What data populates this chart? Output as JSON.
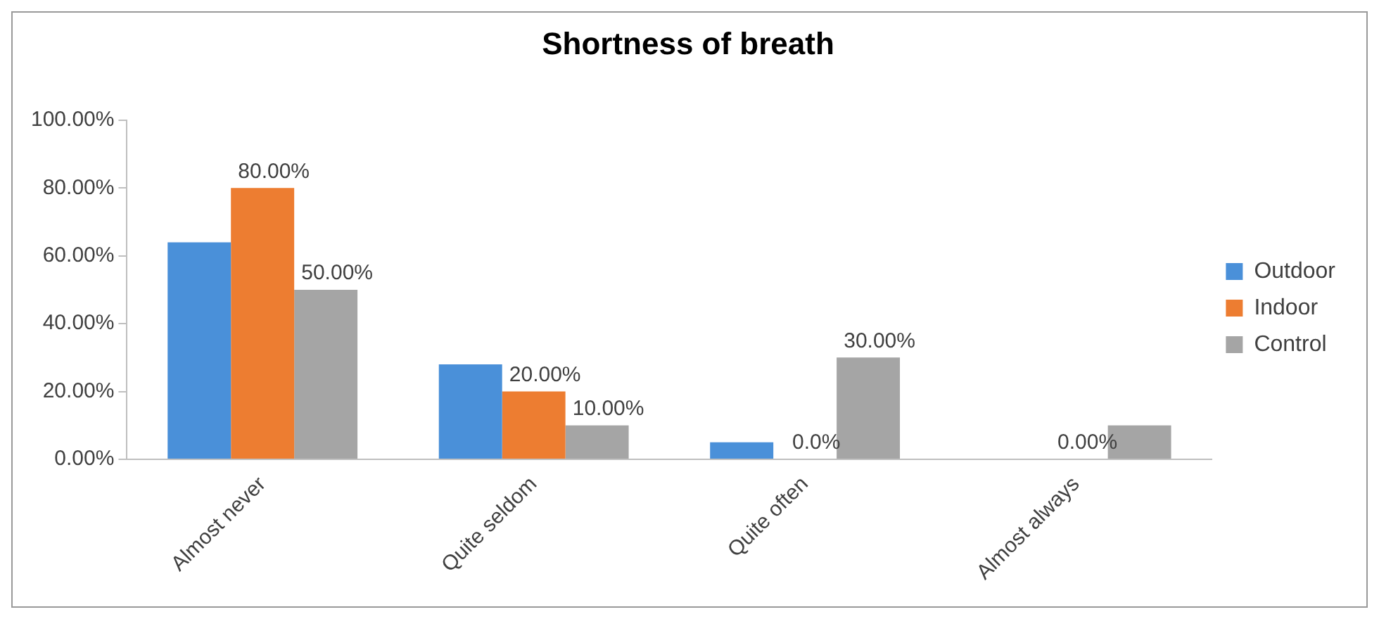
{
  "chart_data": {
    "type": "bar",
    "title": "Shortness of breath",
    "categories": [
      "Almost never",
      "Quite seldom",
      "Quite often",
      "Almost always"
    ],
    "series": [
      {
        "name": "Outdoor",
        "color": "#4a90d9",
        "values": [
          64,
          28,
          5,
          0
        ]
      },
      {
        "name": "Indoor",
        "color": "#ed7d31",
        "values": [
          80,
          20,
          0,
          0
        ],
        "value_labels": [
          "80.00%",
          "20.00%",
          "0.0%",
          "0.00%"
        ]
      },
      {
        "name": "Control",
        "color": "#a5a5a5",
        "values": [
          50,
          10,
          30,
          10
        ],
        "value_labels": [
          "50.00%",
          "10.00%",
          "30.00%",
          null
        ]
      }
    ],
    "ylim": [
      0,
      100
    ],
    "yticks": [
      {
        "value": 0,
        "label": "0.00%"
      },
      {
        "value": 20,
        "label": "20.00%"
      },
      {
        "value": 40,
        "label": "40.00%"
      },
      {
        "value": 60,
        "label": "60.00%"
      },
      {
        "value": 80,
        "label": "80.00%"
      },
      {
        "value": 100,
        "label": "100.00%"
      }
    ],
    "grid": false,
    "legend": "right"
  }
}
